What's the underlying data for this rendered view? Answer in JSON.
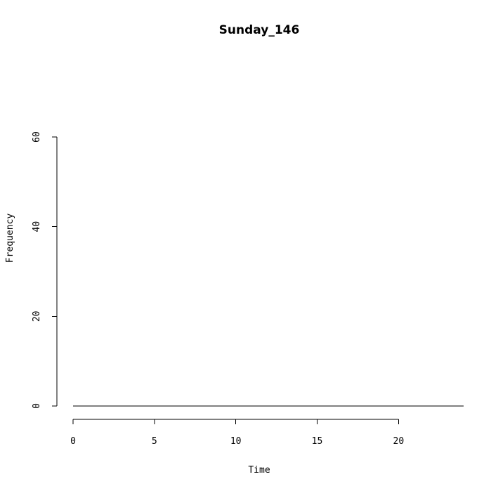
{
  "chart_data": {
    "type": "histogram",
    "title": "Sunday_146",
    "xlabel": "Time",
    "ylabel": "Frequency",
    "x_ticks": [
      0,
      5,
      10,
      15,
      20
    ],
    "y_ticks": [
      0,
      20,
      40,
      60
    ],
    "xlim": [
      0,
      24
    ],
    "ylim": [
      0,
      60
    ],
    "bins": [
      {
        "start": 0,
        "end": 1,
        "count": 0
      },
      {
        "start": 1,
        "end": 2,
        "count": 0
      },
      {
        "start": 2,
        "end": 3,
        "count": 0
      },
      {
        "start": 3,
        "end": 4,
        "count": 0
      },
      {
        "start": 4,
        "end": 5,
        "count": 0
      },
      {
        "start": 5,
        "end": 6,
        "count": 0
      },
      {
        "start": 6,
        "end": 7,
        "count": 0
      },
      {
        "start": 7,
        "end": 8,
        "count": 0
      },
      {
        "start": 8,
        "end": 9,
        "count": 0
      },
      {
        "start": 9,
        "end": 10,
        "count": 0
      },
      {
        "start": 10,
        "end": 11,
        "count": 0
      },
      {
        "start": 11,
        "end": 12,
        "count": 0
      },
      {
        "start": 12,
        "end": 13,
        "count": 0
      },
      {
        "start": 13,
        "end": 14,
        "count": 0
      },
      {
        "start": 14,
        "end": 15,
        "count": 0
      },
      {
        "start": 15,
        "end": 16,
        "count": 0
      },
      {
        "start": 16,
        "end": 17,
        "count": 0
      },
      {
        "start": 17,
        "end": 18,
        "count": 0
      },
      {
        "start": 18,
        "end": 19,
        "count": 0
      },
      {
        "start": 19,
        "end": 20,
        "count": 0
      },
      {
        "start": 20,
        "end": 21,
        "count": 0
      },
      {
        "start": 21,
        "end": 22,
        "count": 0
      },
      {
        "start": 22,
        "end": 23,
        "count": 0
      },
      {
        "start": 23,
        "end": 24,
        "count": 0
      }
    ],
    "grid": false,
    "line_color": "#000000",
    "background": "#ffffff"
  }
}
